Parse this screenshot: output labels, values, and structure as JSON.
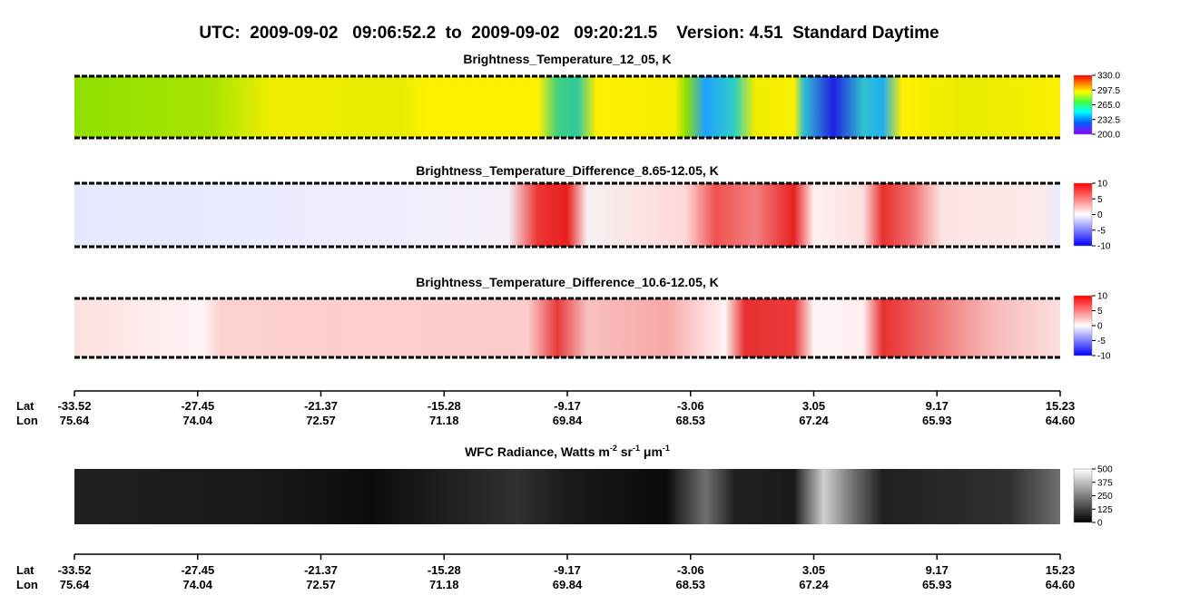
{
  "title": "UTC:  2009-09-02   09:06:52.2  to  2009-09-02   09:20:21.5    Version: 4.51  Standard Daytime",
  "panels": [
    {
      "title": [
        {
          "text": "Brightness_Temperature_12_05, K"
        }
      ],
      "colorbar": {
        "lim": [
          200,
          330
        ],
        "ticks": [
          {
            "value": 330,
            "label": "330.0"
          },
          {
            "value": 297.5,
            "label": "297.5"
          },
          {
            "value": 265,
            "label": "265.0"
          },
          {
            "value": 232.5,
            "label": "232.5"
          },
          {
            "value": 200,
            "label": "200.0"
          }
        ]
      }
    },
    {
      "title": [
        {
          "text": "Brightness_Temperature_Difference_8.65-12.05, K"
        }
      ],
      "colorbar": {
        "lim": [
          -10,
          10
        ],
        "ticks": [
          10,
          5,
          0,
          -5,
          -10
        ]
      }
    },
    {
      "title": [
        {
          "text": "Brightness_Temperature_Difference_10.6-12.05, K"
        }
      ],
      "colorbar": {
        "lim": [
          -10,
          10
        ],
        "ticks": [
          10,
          5,
          0,
          -5,
          -10
        ]
      }
    },
    {
      "title": [
        {
          "text": "WFC Radiance, Watts m"
        },
        {
          "text": "-2",
          "sup": true
        },
        {
          "text": " sr"
        },
        {
          "text": "-1",
          "sup": true
        },
        {
          "text": " μm"
        },
        {
          "text": "-1",
          "sup": true
        }
      ],
      "colorbar": {
        "lim": [
          0,
          500
        ],
        "ticks": [
          500,
          375,
          250,
          125,
          0
        ]
      }
    }
  ],
  "axis": {
    "lat_label": "Lat",
    "lon_label": "Lon",
    "lat": [
      -33.52,
      -27.45,
      -21.37,
      -15.28,
      -9.17,
      -3.06,
      3.05,
      9.17,
      15.23
    ],
    "lon": [
      75.64,
      74.04,
      72.57,
      71.18,
      69.84,
      68.53,
      67.24,
      65.93,
      {
        "value": 64.6,
        "label": "64.60"
      }
    ]
  }
}
